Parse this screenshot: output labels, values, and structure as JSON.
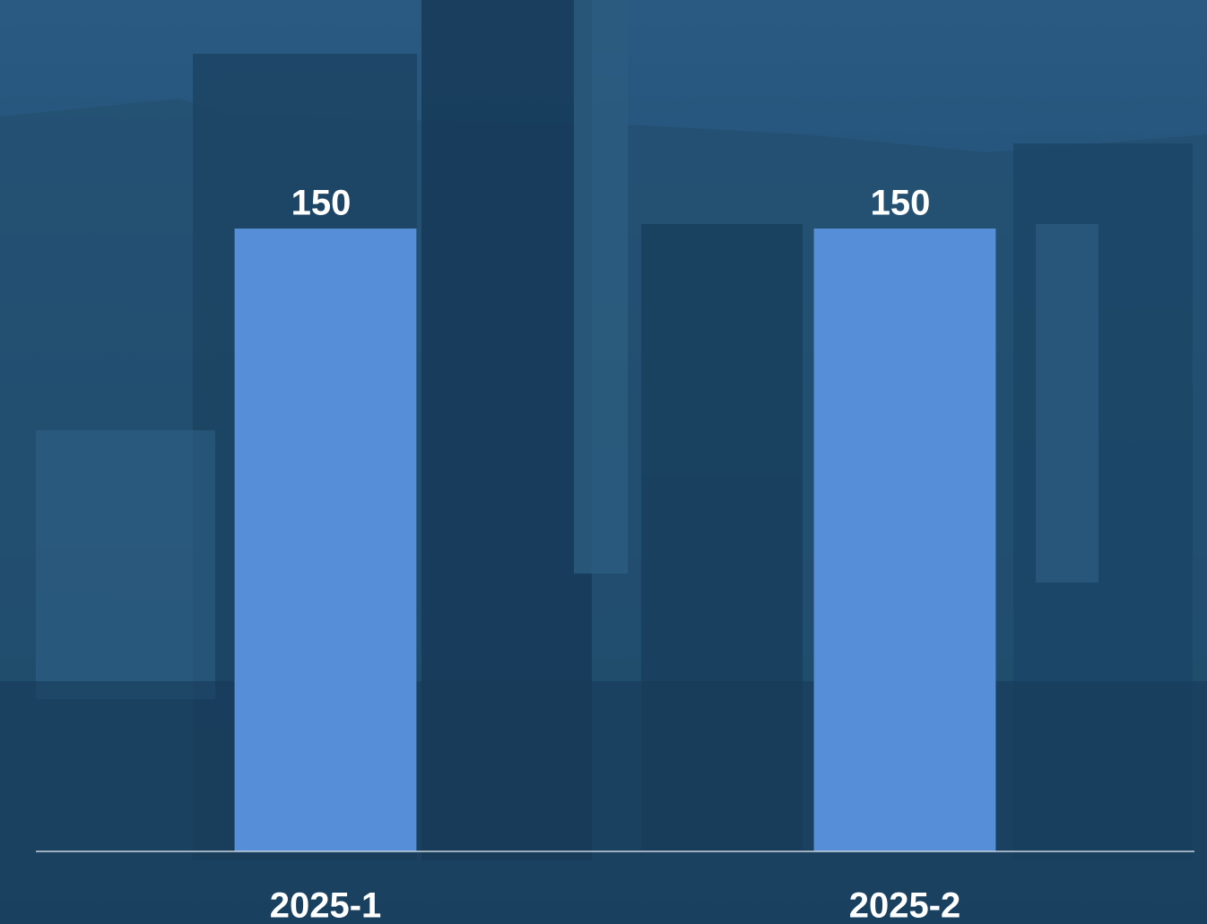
{
  "chart_data": {
    "type": "bar",
    "categories": [
      "2025-1",
      "2025-2"
    ],
    "values": [
      150,
      150
    ],
    "value_labels": [
      "150",
      "150"
    ],
    "color": "#568fd8",
    "ylim": [
      0,
      180
    ]
  }
}
